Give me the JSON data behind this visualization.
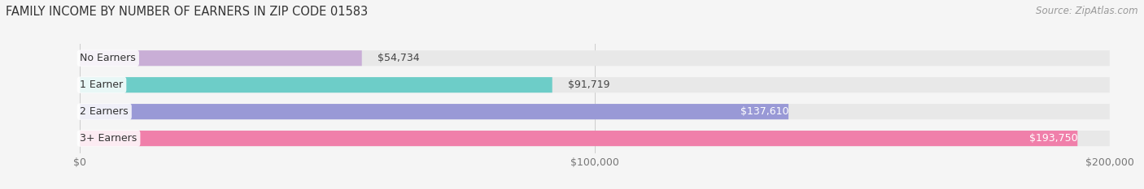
{
  "title": "FAMILY INCOME BY NUMBER OF EARNERS IN ZIP CODE 01583",
  "source": "Source: ZipAtlas.com",
  "categories": [
    "No Earners",
    "1 Earner",
    "2 Earners",
    "3+ Earners"
  ],
  "values": [
    54734,
    91719,
    137610,
    193750
  ],
  "bar_colors": [
    "#c9aed6",
    "#6dcdc8",
    "#9999d6",
    "#f07faa"
  ],
  "bar_bg_color": "#e8e8e8",
  "label_colors": [
    "#444444",
    "#444444",
    "#ffffff",
    "#ffffff"
  ],
  "value_labels": [
    "$54,734",
    "$91,719",
    "$137,610",
    "$193,750"
  ],
  "x_ticks": [
    0,
    100000,
    200000
  ],
  "x_tick_labels": [
    "$0",
    "$100,000",
    "$200,000"
  ],
  "xlim": [
    0,
    200000
  ],
  "title_fontsize": 10.5,
  "source_fontsize": 8.5,
  "label_fontsize": 9,
  "value_fontsize": 9,
  "tick_fontsize": 9,
  "background_color": "#f5f5f5"
}
